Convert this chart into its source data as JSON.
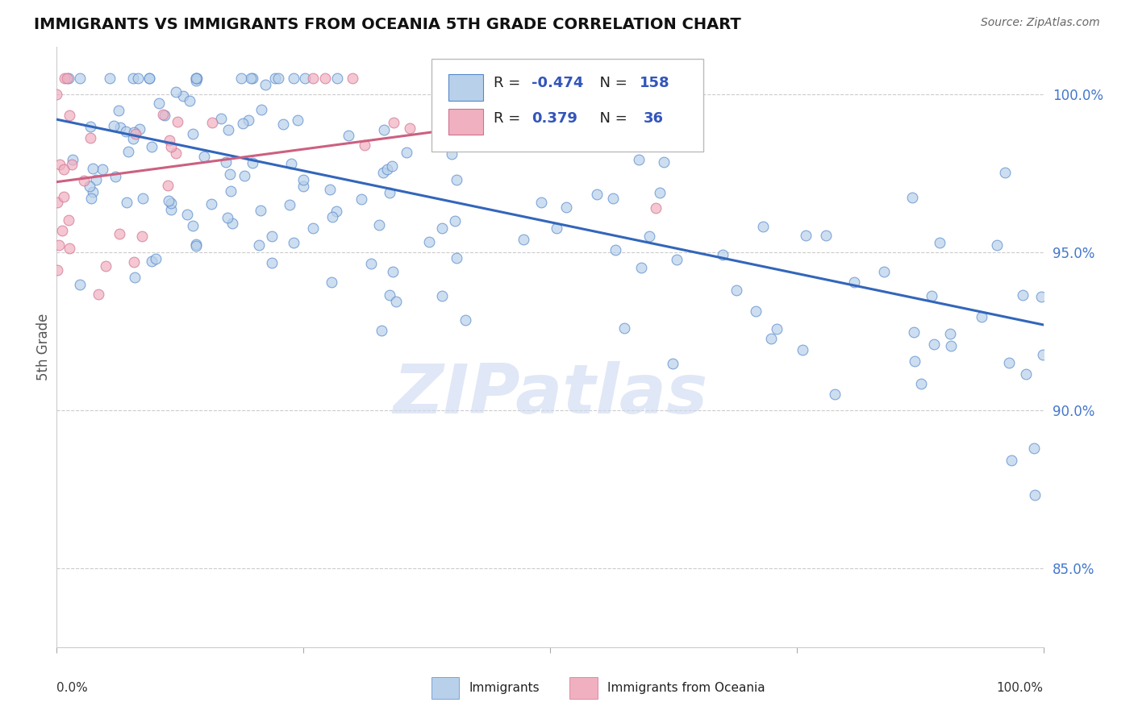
{
  "title": "IMMIGRANTS VS IMMIGRANTS FROM OCEANIA 5TH GRADE CORRELATION CHART",
  "source_text": "Source: ZipAtlas.com",
  "ylabel": "5th Grade",
  "xlim": [
    0.0,
    1.0
  ],
  "ylim": [
    0.825,
    1.015
  ],
  "blue_R": -0.474,
  "blue_N": 158,
  "pink_R": 0.379,
  "pink_N": 36,
  "legend_label_blue": "Immigrants",
  "legend_label_pink": "Immigrants from Oceania",
  "blue_fill": "#b8d0ea",
  "blue_edge": "#5588cc",
  "blue_line": "#3366bb",
  "pink_fill": "#f0b0c0",
  "pink_edge": "#d07090",
  "pink_line": "#cc6080",
  "legend_text_color": "#3355bb",
  "watermark_text": "ZIPatlas",
  "watermark_color": "#ccd8f0",
  "grid_color": "#cccccc",
  "background_color": "#ffffff",
  "title_color": "#111111",
  "source_color": "#666666",
  "yaxis_tick_color": "#4477cc",
  "yticks": [
    0.85,
    0.9,
    0.95,
    1.0
  ]
}
